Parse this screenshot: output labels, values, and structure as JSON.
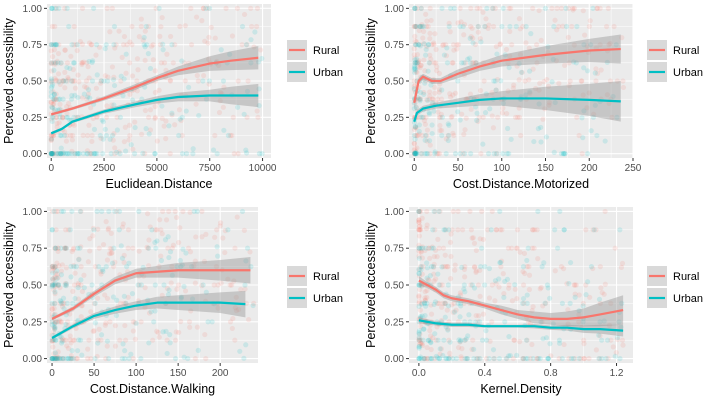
{
  "colors": {
    "rural": "#F8766D",
    "urban": "#00BFC4",
    "panel_bg": "#EBEBEB",
    "grid": "#FFFFFF",
    "ci_band": "#999999"
  },
  "chart_data": [
    {
      "type": "scatter",
      "xlabel": "Euclidean.Distance",
      "ylabel": "Perceived accessibility",
      "xlim": [
        -200,
        10400
      ],
      "ylim": [
        -0.03,
        1.03
      ],
      "xticks": [
        0,
        2500,
        5000,
        7500,
        10000
      ],
      "xtick_labels": [
        "0",
        "2500",
        "5000",
        "7500",
        "10000"
      ],
      "yticks": [
        0,
        0.25,
        0.5,
        0.75,
        1
      ],
      "ytick_labels": [
        "0.00",
        "0.25",
        "0.50",
        "0.75",
        "1.00"
      ],
      "legend": [
        "Rural",
        "Urban"
      ],
      "scatter_x_range": [
        0,
        10000
      ],
      "series": [
        {
          "name": "Rural",
          "x": [
            0,
            1000,
            2500,
            4000,
            5000,
            6000,
            7500,
            8500,
            9800
          ],
          "y": [
            0.27,
            0.31,
            0.38,
            0.46,
            0.52,
            0.57,
            0.62,
            0.64,
            0.66
          ],
          "ci": [
            0.01,
            0.01,
            0.015,
            0.02,
            0.02,
            0.03,
            0.05,
            0.065,
            0.08
          ],
          "scatter_density": 1.3
        },
        {
          "name": "Urban",
          "x": [
            0,
            500,
            1000,
            2500,
            4000,
            5000,
            6000,
            7500,
            8500,
            9800
          ],
          "y": [
            0.14,
            0.17,
            0.22,
            0.29,
            0.34,
            0.37,
            0.39,
            0.4,
            0.4,
            0.4
          ],
          "ci": [
            0.01,
            0.01,
            0.01,
            0.015,
            0.02,
            0.025,
            0.03,
            0.04,
            0.06,
            0.08
          ],
          "scatter_density": 0.9
        }
      ]
    },
    {
      "type": "scatter",
      "xlabel": "Cost.Distance.Motorized",
      "ylabel": "Perceived accessibility",
      "xlim": [
        -6,
        250
      ],
      "ylim": [
        -0.03,
        1.03
      ],
      "xticks": [
        0,
        50,
        100,
        150,
        200,
        250
      ],
      "xtick_labels": [
        "0",
        "50",
        "100",
        "150",
        "200",
        "250"
      ],
      "yticks": [
        0,
        0.25,
        0.5,
        0.75,
        1
      ],
      "ytick_labels": [
        "0.00",
        "0.25",
        "0.50",
        "0.75",
        "1.00"
      ],
      "legend": [
        "Rural",
        "Urban"
      ],
      "scatter_x_range": [
        0,
        240
      ],
      "series": [
        {
          "name": "Rural",
          "x": [
            0,
            5,
            10,
            20,
            30,
            50,
            75,
            100,
            150,
            200,
            236
          ],
          "y": [
            0.35,
            0.5,
            0.53,
            0.5,
            0.5,
            0.55,
            0.6,
            0.64,
            0.68,
            0.71,
            0.72
          ],
          "ci": [
            0.05,
            0.02,
            0.02,
            0.02,
            0.02,
            0.03,
            0.03,
            0.04,
            0.06,
            0.08,
            0.1
          ],
          "scatter_density": 1.4
        },
        {
          "name": "Urban",
          "x": [
            0,
            3,
            10,
            25,
            50,
            75,
            100,
            150,
            200,
            236
          ],
          "y": [
            0.22,
            0.28,
            0.31,
            0.33,
            0.35,
            0.37,
            0.38,
            0.38,
            0.37,
            0.36
          ],
          "ci": [
            0.02,
            0.02,
            0.02,
            0.02,
            0.03,
            0.04,
            0.05,
            0.08,
            0.11,
            0.14
          ],
          "scatter_density": 0.9
        }
      ]
    },
    {
      "type": "scatter",
      "xlabel": "Cost.Distance.Walking",
      "ylabel": "Perceived accessibility",
      "xlim": [
        -6,
        245
      ],
      "ylim": [
        -0.03,
        1.03
      ],
      "xticks": [
        0,
        50,
        100,
        150,
        200
      ],
      "xtick_labels": [
        "0",
        "50",
        "100",
        "150",
        "200"
      ],
      "yticks": [
        0,
        0.25,
        0.5,
        0.75,
        1
      ],
      "ytick_labels": [
        "0.00",
        "0.25",
        "0.50",
        "0.75",
        "1.00"
      ],
      "legend": [
        "Rural",
        "Urban"
      ],
      "scatter_x_range": [
        0,
        240
      ],
      "series": [
        {
          "name": "Rural",
          "x": [
            0,
            25,
            50,
            75,
            100,
            125,
            150,
            175,
            200,
            236
          ],
          "y": [
            0.27,
            0.34,
            0.44,
            0.53,
            0.58,
            0.59,
            0.6,
            0.6,
            0.6,
            0.6
          ],
          "ci": [
            0.01,
            0.015,
            0.02,
            0.025,
            0.03,
            0.04,
            0.05,
            0.06,
            0.07,
            0.09
          ],
          "scatter_density": 1.3
        },
        {
          "name": "Urban",
          "x": [
            0,
            25,
            50,
            75,
            100,
            125,
            150,
            175,
            200,
            230
          ],
          "y": [
            0.14,
            0.22,
            0.29,
            0.33,
            0.36,
            0.38,
            0.38,
            0.38,
            0.38,
            0.37
          ],
          "ci": [
            0.01,
            0.015,
            0.02,
            0.025,
            0.03,
            0.04,
            0.05,
            0.06,
            0.07,
            0.09
          ],
          "scatter_density": 0.9
        }
      ]
    },
    {
      "type": "scatter",
      "xlabel": "Kernel.Density",
      "ylabel": "Perceived accessibility",
      "xlim": [
        -0.06,
        1.3
      ],
      "ylim": [
        -0.03,
        1.03
      ],
      "xticks": [
        0,
        0.4,
        0.8,
        1.2
      ],
      "xtick_labels": [
        "0.0",
        "0.4",
        "0.8",
        "1.2"
      ],
      "yticks": [
        0,
        0.25,
        0.5,
        0.75,
        1
      ],
      "ytick_labels": [
        "0.00",
        "0.25",
        "0.50",
        "0.75",
        "1.00"
      ],
      "legend": [
        "Rural",
        "Urban"
      ],
      "scatter_x_range": [
        0,
        1.25
      ],
      "series": [
        {
          "name": "Rural",
          "x": [
            0,
            0.05,
            0.1,
            0.15,
            0.2,
            0.3,
            0.4,
            0.5,
            0.6,
            0.7,
            0.8,
            0.9,
            1.0,
            1.1,
            1.24
          ],
          "y": [
            0.53,
            0.5,
            0.47,
            0.43,
            0.41,
            0.39,
            0.36,
            0.33,
            0.3,
            0.28,
            0.27,
            0.27,
            0.28,
            0.3,
            0.33
          ],
          "ci": [
            0.03,
            0.02,
            0.02,
            0.02,
            0.02,
            0.02,
            0.02,
            0.03,
            0.03,
            0.04,
            0.04,
            0.05,
            0.06,
            0.08,
            0.1
          ],
          "scatter_density": 1.3
        },
        {
          "name": "Urban",
          "x": [
            0,
            0.1,
            0.2,
            0.3,
            0.4,
            0.5,
            0.6,
            0.7,
            0.8,
            0.9,
            1.0,
            1.1,
            1.24
          ],
          "y": [
            0.26,
            0.24,
            0.23,
            0.23,
            0.22,
            0.22,
            0.22,
            0.22,
            0.21,
            0.21,
            0.2,
            0.2,
            0.19
          ],
          "ci": [
            0.02,
            0.015,
            0.015,
            0.015,
            0.01,
            0.01,
            0.01,
            0.015,
            0.015,
            0.02,
            0.025,
            0.03,
            0.04
          ],
          "scatter_density": 1.0
        }
      ]
    }
  ]
}
